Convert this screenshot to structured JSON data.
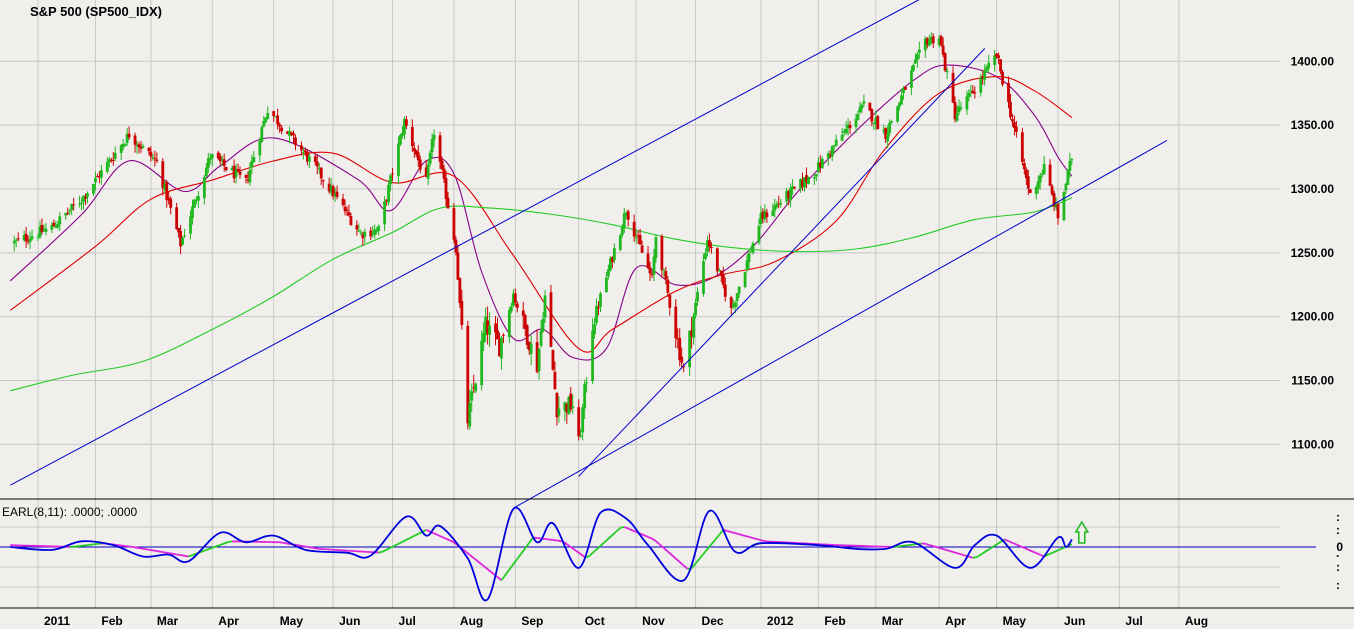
{
  "chart_data": {
    "type": "candlestick",
    "title": "S&P 500 (SP500_IDX)",
    "y_axis": {
      "ticks": [
        1100,
        1150,
        1200,
        1250,
        1300,
        1350,
        1400
      ],
      "tick_labels": [
        "1100.00",
        "1150.00",
        "1200.00",
        "1250.00",
        "1300.00",
        "1350.00",
        "1400.00"
      ],
      "range": [
        1058,
        1448
      ],
      "position": "right"
    },
    "x_axis": {
      "labels": [
        "2011",
        "Feb",
        "Mar",
        "Apr",
        "May",
        "Jun",
        "Jul",
        "Aug",
        "Sep",
        "Oct",
        "Nov",
        "Dec",
        "2012",
        "Feb",
        "Mar",
        "Apr",
        "May",
        "Jun",
        "Jul",
        "Aug"
      ],
      "label_dates": [
        "2011-01-03",
        "2011-02-01",
        "2011-03-01",
        "2011-04-01",
        "2011-05-02",
        "2011-06-01",
        "2011-07-01",
        "2011-08-01",
        "2011-09-01",
        "2011-10-03",
        "2011-11-01",
        "2011-12-01",
        "2012-01-03",
        "2012-02-01",
        "2012-03-01",
        "2012-04-02",
        "2012-05-01",
        "2012-06-01",
        "2012-07-02",
        "2012-08-01"
      ]
    },
    "grid": true,
    "colors": {
      "up": "#1fb81f",
      "down": "#cc0000",
      "ma_fast": "#880088",
      "ma_mid": "#dd0000",
      "ma_slow": "#22cc22",
      "trendline": "#0000cc",
      "background": "#f0efec",
      "grid": "#c8c8c8"
    },
    "price_anchors": [
      [
        "2010-12-22",
        1258
      ],
      [
        "2011-01-10",
        1270
      ],
      [
        "2011-01-25",
        1292
      ],
      [
        "2011-02-18",
        1343
      ],
      [
        "2011-03-04",
        1321
      ],
      [
        "2011-03-16",
        1257
      ],
      [
        "2011-03-31",
        1326
      ],
      [
        "2011-04-18",
        1305
      ],
      [
        "2011-04-29",
        1363
      ],
      [
        "2011-05-23",
        1317
      ],
      [
        "2011-06-15",
        1265
      ],
      [
        "2011-06-24",
        1268
      ],
      [
        "2011-07-07",
        1353
      ],
      [
        "2011-07-18",
        1305
      ],
      [
        "2011-07-22",
        1345
      ],
      [
        "2011-08-02",
        1254
      ],
      [
        "2011-08-08",
        1119
      ],
      [
        "2011-08-17",
        1193
      ],
      [
        "2011-08-24",
        1177
      ],
      [
        "2011-08-31",
        1218
      ],
      [
        "2011-09-12",
        1162
      ],
      [
        "2011-09-16",
        1216
      ],
      [
        "2011-09-22",
        1129
      ],
      [
        "2011-09-30",
        1131
      ],
      [
        "2011-10-03",
        1099
      ],
      [
        "2011-10-10",
        1194
      ],
      [
        "2011-10-27",
        1284
      ],
      [
        "2011-11-09",
        1229
      ],
      [
        "2011-11-11",
        1263
      ],
      [
        "2011-11-25",
        1158
      ],
      [
        "2011-12-07",
        1261
      ],
      [
        "2011-12-19",
        1205
      ],
      [
        "2012-01-03",
        1277
      ],
      [
        "2012-01-30",
        1313
      ],
      [
        "2012-02-24",
        1365
      ],
      [
        "2012-03-06",
        1343
      ],
      [
        "2012-03-26",
        1416
      ],
      [
        "2012-04-02",
        1419
      ],
      [
        "2012-04-10",
        1358
      ],
      [
        "2012-04-20",
        1378
      ],
      [
        "2012-05-01",
        1405
      ],
      [
        "2012-05-18",
        1295
      ],
      [
        "2012-05-25",
        1317
      ],
      [
        "2012-06-01",
        1278
      ],
      [
        "2012-06-08",
        1325
      ]
    ],
    "series": [
      {
        "type": "ma",
        "points": [
          [
            "2010-12-20",
            1228
          ],
          [
            "2011-01-25",
            1280
          ],
          [
            "2011-02-18",
            1322
          ],
          [
            "2011-03-18",
            1298
          ],
          [
            "2011-04-05",
            1318
          ],
          [
            "2011-05-02",
            1340
          ],
          [
            "2011-06-13",
            1308
          ],
          [
            "2011-06-30",
            1283
          ],
          [
            "2011-07-18",
            1322
          ],
          [
            "2011-08-01",
            1312
          ],
          [
            "2011-08-15",
            1235
          ],
          [
            "2011-08-31",
            1183
          ],
          [
            "2011-09-15",
            1190
          ],
          [
            "2011-09-30",
            1168
          ],
          [
            "2011-10-17",
            1175
          ],
          [
            "2011-11-01",
            1238
          ],
          [
            "2011-11-21",
            1225
          ],
          [
            "2011-12-09",
            1230
          ],
          [
            "2011-12-30",
            1255
          ],
          [
            "2012-01-20",
            1295
          ],
          [
            "2012-02-10",
            1330
          ],
          [
            "2012-03-01",
            1360
          ],
          [
            "2012-03-20",
            1385
          ],
          [
            "2012-04-05",
            1397
          ],
          [
            "2012-05-01",
            1388
          ],
          [
            "2012-05-20",
            1358
          ],
          [
            "2012-06-01",
            1325
          ],
          [
            "2012-06-08",
            1310
          ]
        ]
      },
      {
        "type": "ma",
        "points": [
          [
            "2010-12-20",
            1205
          ],
          [
            "2011-02-01",
            1255
          ],
          [
            "2011-03-01",
            1292
          ],
          [
            "2011-04-01",
            1307
          ],
          [
            "2011-05-02",
            1322
          ],
          [
            "2011-06-01",
            1328
          ],
          [
            "2011-07-01",
            1305
          ],
          [
            "2011-08-01",
            1310
          ],
          [
            "2011-08-31",
            1248
          ],
          [
            "2011-10-03",
            1175
          ],
          [
            "2011-10-20",
            1190
          ],
          [
            "2011-11-21",
            1220
          ],
          [
            "2011-12-15",
            1233
          ],
          [
            "2012-01-10",
            1243
          ],
          [
            "2012-02-10",
            1275
          ],
          [
            "2012-03-05",
            1330
          ],
          [
            "2012-04-02",
            1375
          ],
          [
            "2012-05-01",
            1388
          ],
          [
            "2012-05-20",
            1377
          ],
          [
            "2012-06-08",
            1356
          ]
        ]
      },
      {
        "type": "ma",
        "points": [
          [
            "2010-12-20",
            1142
          ],
          [
            "2011-01-20",
            1154
          ],
          [
            "2011-02-25",
            1165
          ],
          [
            "2011-04-01",
            1190
          ],
          [
            "2011-05-01",
            1215
          ],
          [
            "2011-06-01",
            1245
          ],
          [
            "2011-07-01",
            1266
          ],
          [
            "2011-07-25",
            1285
          ],
          [
            "2011-08-20",
            1285
          ],
          [
            "2011-09-20",
            1280
          ],
          [
            "2011-10-20",
            1272
          ],
          [
            "2011-11-20",
            1261
          ],
          [
            "2011-12-20",
            1254
          ],
          [
            "2012-01-20",
            1251
          ],
          [
            "2012-02-20",
            1253
          ],
          [
            "2012-03-20",
            1262
          ],
          [
            "2012-04-20",
            1276
          ],
          [
            "2012-05-20",
            1282
          ],
          [
            "2012-06-08",
            1293
          ]
        ]
      },
      {
        "type": "trendline",
        "points": [
          [
            "2010-12-20",
            1068
          ],
          [
            "2012-03-31",
            1455
          ]
        ]
      },
      {
        "type": "trendline",
        "points": [
          [
            "2011-10-03",
            1075
          ],
          [
            "2012-04-25",
            1410
          ]
        ]
      },
      {
        "type": "trendline",
        "points": [
          [
            "2011-08-31",
            1050
          ],
          [
            "2012-07-26",
            1338
          ]
        ]
      }
    ],
    "indicator": {
      "label": "EARL(8,11): .0000; .0000",
      "zero_label": "0",
      "scale_marks": [
        ":",
        ":",
        "·",
        ":",
        ":"
      ],
      "baseline": 0,
      "signal_arrow": {
        "date": "2012-06-13",
        "direction": "up",
        "color": "#22bb22"
      },
      "colors": {
        "fast": "#0000dd",
        "slow_up": "#22cc22",
        "slow_down": "#dd22dd",
        "baseline": "#0000bb"
      },
      "fast_points": [
        [
          "2010-12-20",
          0.0
        ],
        [
          "2011-01-10",
          -0.03
        ],
        [
          "2011-01-25",
          0.06
        ],
        [
          "2011-02-10",
          0.02
        ],
        [
          "2011-02-25",
          -0.1
        ],
        [
          "2011-03-10",
          -0.08
        ],
        [
          "2011-03-20",
          -0.15
        ],
        [
          "2011-04-05",
          0.15
        ],
        [
          "2011-04-18",
          0.05
        ],
        [
          "2011-05-02",
          0.12
        ],
        [
          "2011-05-18",
          -0.03
        ],
        [
          "2011-06-08",
          -0.06
        ],
        [
          "2011-06-20",
          -0.09
        ],
        [
          "2011-07-08",
          0.32
        ],
        [
          "2011-07-18",
          0.12
        ],
        [
          "2011-07-25",
          0.22
        ],
        [
          "2011-08-08",
          -0.12
        ],
        [
          "2011-08-18",
          -0.55
        ],
        [
          "2011-08-31",
          0.4
        ],
        [
          "2011-09-12",
          0.05
        ],
        [
          "2011-09-20",
          0.25
        ],
        [
          "2011-10-03",
          -0.22
        ],
        [
          "2011-10-14",
          0.36
        ],
        [
          "2011-10-27",
          0.3
        ],
        [
          "2011-11-07",
          0.02
        ],
        [
          "2011-11-25",
          -0.35
        ],
        [
          "2011-12-08",
          0.38
        ],
        [
          "2011-12-21",
          -0.05
        ],
        [
          "2012-01-03",
          0.04
        ],
        [
          "2012-02-01",
          0.02
        ],
        [
          "2012-02-20",
          -0.02
        ],
        [
          "2012-03-06",
          -0.02
        ],
        [
          "2012-03-20",
          0.05
        ],
        [
          "2012-04-10",
          -0.22
        ],
        [
          "2012-04-20",
          0.02
        ],
        [
          "2012-05-01",
          0.12
        ],
        [
          "2012-05-18",
          -0.22
        ],
        [
          "2012-06-01",
          0.1
        ],
        [
          "2012-06-05",
          0.0
        ],
        [
          "2012-06-08",
          0.08
        ]
      ],
      "slow_points": [
        [
          "2010-12-20",
          0.02
        ],
        [
          "2011-01-20",
          0.0
        ],
        [
          "2011-02-05",
          0.04
        ],
        [
          "2011-02-20",
          0.0
        ],
        [
          "2011-03-20",
          -0.1
        ],
        [
          "2011-04-10",
          0.06
        ],
        [
          "2011-05-05",
          0.05
        ],
        [
          "2011-05-25",
          -0.02
        ],
        [
          "2011-06-25",
          -0.06
        ],
        [
          "2011-07-18",
          0.18
        ],
        [
          "2011-08-01",
          0.05
        ],
        [
          "2011-08-25",
          -0.35
        ],
        [
          "2011-09-10",
          0.1
        ],
        [
          "2011-09-25",
          0.06
        ],
        [
          "2011-10-07",
          -0.12
        ],
        [
          "2011-10-25",
          0.22
        ],
        [
          "2011-11-10",
          0.08
        ],
        [
          "2011-11-28",
          -0.25
        ],
        [
          "2011-12-15",
          0.18
        ],
        [
          "2012-01-05",
          0.06
        ],
        [
          "2012-02-10",
          0.02
        ],
        [
          "2012-03-10",
          0.0
        ],
        [
          "2012-03-25",
          0.04
        ],
        [
          "2012-04-20",
          -0.12
        ],
        [
          "2012-05-05",
          0.08
        ],
        [
          "2012-05-25",
          -0.1
        ],
        [
          "2012-06-08",
          0.03
        ]
      ]
    }
  }
}
